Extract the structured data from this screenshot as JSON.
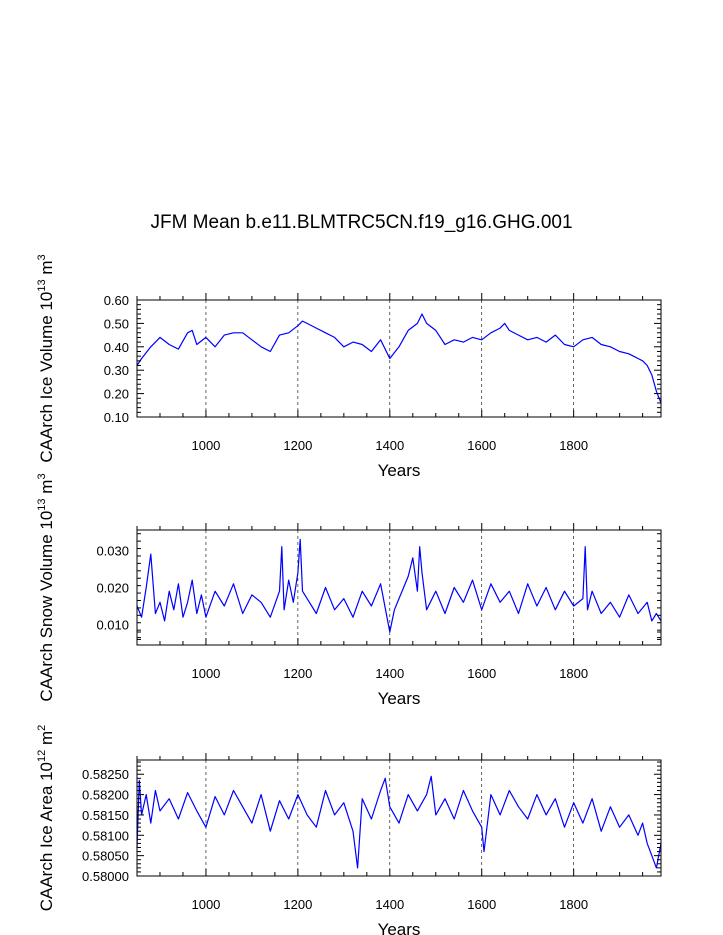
{
  "figure": {
    "title": "JFM Mean b.e11.BLMTRC5CN.f19_g16.GHG.001"
  },
  "chart_data": [
    {
      "type": "line",
      "title": "",
      "xlabel": "Years",
      "ylabel": "CAArch Ice Volume 10",
      "ylabel_exp": "13",
      "ylabel_unit": " m",
      "ylabel_unit_exp": "3",
      "xlim": [
        850,
        1990
      ],
      "ylim": [
        0.1,
        0.6
      ],
      "xticks": [
        1000,
        1200,
        1400,
        1600,
        1800
      ],
      "xtick_labels": [
        "1000",
        "1200",
        "1400",
        "1600",
        "1800"
      ],
      "yticks": [
        0.1,
        0.2,
        0.3,
        0.4,
        0.5,
        0.6
      ],
      "ytick_labels": [
        "0.10",
        "0.20",
        "0.30",
        "0.40",
        "0.50",
        "0.60"
      ],
      "grid": "dashed vertical at x ticks",
      "color": "#0000ff",
      "series": [
        {
          "x": [
            850,
            860,
            880,
            900,
            920,
            940,
            960,
            970,
            980,
            1000,
            1020,
            1040,
            1060,
            1080,
            1100,
            1120,
            1140,
            1160,
            1180,
            1200,
            1210,
            1220,
            1240,
            1260,
            1280,
            1300,
            1320,
            1340,
            1360,
            1380,
            1400,
            1420,
            1440,
            1460,
            1470,
            1480,
            1500,
            1520,
            1540,
            1560,
            1580,
            1600,
            1620,
            1640,
            1650,
            1660,
            1680,
            1700,
            1720,
            1740,
            1760,
            1780,
            1800,
            1820,
            1840,
            1860,
            1880,
            1900,
            1920,
            1940,
            1950,
            1960,
            1970,
            1980,
            1990
          ],
          "values": [
            0.32,
            0.35,
            0.4,
            0.44,
            0.41,
            0.39,
            0.46,
            0.47,
            0.41,
            0.44,
            0.4,
            0.45,
            0.46,
            0.46,
            0.43,
            0.4,
            0.38,
            0.45,
            0.46,
            0.49,
            0.51,
            0.5,
            0.48,
            0.46,
            0.44,
            0.4,
            0.42,
            0.41,
            0.38,
            0.43,
            0.35,
            0.4,
            0.47,
            0.5,
            0.54,
            0.5,
            0.47,
            0.41,
            0.43,
            0.42,
            0.44,
            0.43,
            0.46,
            0.48,
            0.5,
            0.47,
            0.45,
            0.43,
            0.44,
            0.42,
            0.45,
            0.41,
            0.4,
            0.43,
            0.44,
            0.41,
            0.4,
            0.38,
            0.37,
            0.35,
            0.34,
            0.32,
            0.28,
            0.21,
            0.16
          ]
        }
      ]
    },
    {
      "type": "line",
      "title": "",
      "xlabel": "Years",
      "ylabel": "CAArch Snow Volume 10",
      "ylabel_exp": "13",
      "ylabel_unit": " m",
      "ylabel_unit_exp": "3",
      "xlim": [
        850,
        1990
      ],
      "ylim": [
        0.0045,
        0.0355
      ],
      "xticks": [
        1000,
        1200,
        1400,
        1600,
        1800
      ],
      "xtick_labels": [
        "1000",
        "1200",
        "1400",
        "1600",
        "1800"
      ],
      "yticks": [
        0.01,
        0.02,
        0.03
      ],
      "ytick_labels": [
        "0.010",
        "0.020",
        "0.030"
      ],
      "grid": "dashed vertical at x ticks",
      "color": "#0000ff",
      "series": [
        {
          "x": [
            850,
            860,
            870,
            880,
            890,
            900,
            910,
            920,
            930,
            940,
            950,
            960,
            970,
            980,
            990,
            1000,
            1020,
            1040,
            1060,
            1080,
            1100,
            1120,
            1140,
            1160,
            1165,
            1170,
            1180,
            1190,
            1200,
            1205,
            1210,
            1220,
            1240,
            1260,
            1280,
            1300,
            1320,
            1340,
            1360,
            1380,
            1400,
            1410,
            1420,
            1440,
            1450,
            1460,
            1465,
            1470,
            1480,
            1500,
            1520,
            1540,
            1560,
            1580,
            1600,
            1620,
            1640,
            1660,
            1680,
            1700,
            1720,
            1740,
            1760,
            1780,
            1800,
            1820,
            1825,
            1830,
            1840,
            1860,
            1880,
            1900,
            1920,
            1940,
            1960,
            1970,
            1980,
            1990
          ],
          "values": [
            0.015,
            0.012,
            0.02,
            0.029,
            0.013,
            0.016,
            0.011,
            0.019,
            0.014,
            0.021,
            0.012,
            0.016,
            0.022,
            0.013,
            0.018,
            0.012,
            0.019,
            0.015,
            0.021,
            0.013,
            0.018,
            0.016,
            0.012,
            0.019,
            0.031,
            0.014,
            0.022,
            0.016,
            0.024,
            0.033,
            0.019,
            0.017,
            0.013,
            0.02,
            0.014,
            0.017,
            0.012,
            0.019,
            0.015,
            0.021,
            0.008,
            0.014,
            0.017,
            0.023,
            0.028,
            0.019,
            0.031,
            0.024,
            0.014,
            0.019,
            0.013,
            0.02,
            0.016,
            0.022,
            0.014,
            0.021,
            0.016,
            0.019,
            0.013,
            0.021,
            0.015,
            0.02,
            0.014,
            0.019,
            0.015,
            0.017,
            0.031,
            0.014,
            0.019,
            0.013,
            0.016,
            0.012,
            0.018,
            0.013,
            0.016,
            0.011,
            0.013,
            0.011
          ]
        }
      ]
    },
    {
      "type": "line",
      "title": "",
      "xlabel": "Years",
      "ylabel": "CAArch Ice Area 10",
      "ylabel_exp": "12",
      "ylabel_unit": " m",
      "ylabel_unit_exp": "2",
      "xlim": [
        850,
        1990
      ],
      "ylim": [
        0.58,
        0.58285
      ],
      "xticks": [
        1000,
        1200,
        1400,
        1600,
        1800
      ],
      "xtick_labels": [
        "1000",
        "1200",
        "1400",
        "1600",
        "1800"
      ],
      "yticks": [
        0.58,
        0.5805,
        0.581,
        0.5815,
        0.582,
        0.5825
      ],
      "ytick_labels": [
        "0.58000",
        "0.58050",
        "0.58100",
        "0.58150",
        "0.58200",
        "0.58250"
      ],
      "grid": "dashed vertical at x ticks",
      "color": "#0000ff",
      "series": [
        {
          "x": [
            850,
            855,
            860,
            870,
            880,
            890,
            900,
            920,
            940,
            960,
            980,
            1000,
            1020,
            1040,
            1060,
            1080,
            1100,
            1120,
            1140,
            1160,
            1180,
            1200,
            1220,
            1240,
            1260,
            1280,
            1300,
            1320,
            1330,
            1340,
            1360,
            1380,
            1390,
            1400,
            1420,
            1440,
            1460,
            1480,
            1490,
            1500,
            1520,
            1540,
            1560,
            1580,
            1600,
            1605,
            1620,
            1640,
            1660,
            1680,
            1700,
            1720,
            1740,
            1760,
            1780,
            1800,
            1820,
            1840,
            1860,
            1880,
            1900,
            1920,
            1940,
            1950,
            1960,
            1970,
            1980,
            1990
          ],
          "values": [
            0.5807,
            0.58235,
            0.5815,
            0.582,
            0.5813,
            0.5821,
            0.5816,
            0.5819,
            0.5814,
            0.58205,
            0.5816,
            0.5812,
            0.58195,
            0.5815,
            0.5821,
            0.5817,
            0.5813,
            0.582,
            0.5811,
            0.58185,
            0.5814,
            0.582,
            0.5815,
            0.5812,
            0.5821,
            0.5815,
            0.5818,
            0.5811,
            0.5802,
            0.5819,
            0.5814,
            0.5821,
            0.5824,
            0.5817,
            0.5813,
            0.582,
            0.5816,
            0.582,
            0.58245,
            0.5815,
            0.5819,
            0.5814,
            0.5821,
            0.5816,
            0.5812,
            0.5806,
            0.582,
            0.5815,
            0.5821,
            0.5817,
            0.5814,
            0.582,
            0.5815,
            0.5819,
            0.5812,
            0.5818,
            0.5813,
            0.5819,
            0.5811,
            0.5817,
            0.5812,
            0.5815,
            0.581,
            0.5813,
            0.5808,
            0.5805,
            0.5802,
            0.5808
          ]
        }
      ]
    }
  ]
}
